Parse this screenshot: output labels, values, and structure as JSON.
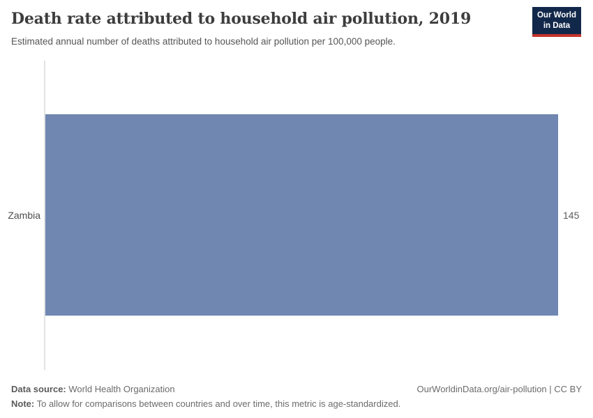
{
  "header": {
    "title": "Death rate attributed to household air pollution, 2019",
    "subtitle": "Estimated annual number of deaths attributed to household air pollution per 100,000 people.",
    "logo": {
      "line1": "Our World",
      "line2": "in Data"
    }
  },
  "chart_data": {
    "type": "bar",
    "orientation": "horizontal",
    "title": "Death rate attributed to household air pollution, 2019",
    "categories": [
      "Zambia"
    ],
    "values": [
      145
    ],
    "value_labels": [
      "145"
    ],
    "xlabel": "",
    "ylabel": "",
    "xlim": [
      0,
      145
    ],
    "grid": false,
    "legend": false,
    "bar_color": "#7087b1"
  },
  "colors": {
    "bar": "#7087b1",
    "logo_background": "#12284b",
    "logo_accent": "#c5352c",
    "axis_line": "#e3e3e3"
  },
  "footer": {
    "datasource_label": "Data source:",
    "datasource_value": "World Health Organization",
    "note_label": "Note:",
    "note_value": "To allow for comparisons between countries and over time, this metric is age-standardized.",
    "credit": "OurWorldinData.org/air-pollution | CC BY"
  }
}
